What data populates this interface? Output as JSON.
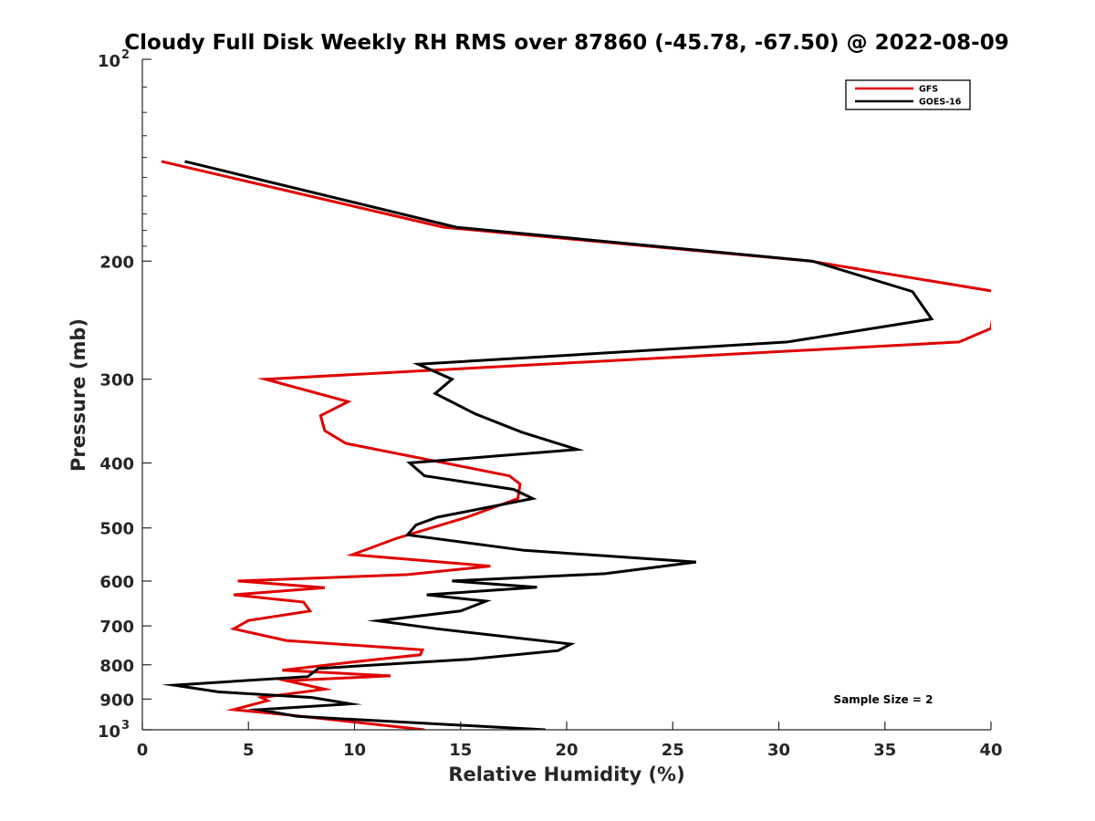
{
  "chart_data": {
    "type": "line",
    "title": "Cloudy Full Disk Weekly RH RMS over 87860 (-45.78, -67.50) @ 2022-08-09",
    "xlabel": "Relative Humidity (%)",
    "ylabel": "Pressure (mb)",
    "xlim": [
      0,
      40
    ],
    "ylim": [
      100,
      1000
    ],
    "y_scale": "log",
    "y_reversed": true,
    "x_ticks": [
      "0",
      "5",
      "10",
      "15",
      "20",
      "25",
      "30",
      "35",
      "40"
    ],
    "y_ticks": [
      {
        "value": 100,
        "base": "10",
        "exp": "2"
      },
      {
        "value": 200,
        "label": "200"
      },
      {
        "value": 300,
        "label": "300"
      },
      {
        "value": 400,
        "label": "400"
      },
      {
        "value": 500,
        "label": "500"
      },
      {
        "value": 600,
        "label": "600"
      },
      {
        "value": 700,
        "label": "700"
      },
      {
        "value": 800,
        "label": "800"
      },
      {
        "value": 900,
        "label": "900"
      },
      {
        "value": 1000,
        "base": "10",
        "exp": "3"
      }
    ],
    "legend_position": "top-right",
    "annotation": "Sample Size = 2",
    "series": [
      {
        "name": "GFS",
        "color": "#e00000",
        "points": [
          [
            0.9,
            142
          ],
          [
            14.2,
            178
          ],
          [
            31.5,
            200
          ],
          [
            40.2,
            222
          ],
          [
            40.2,
            228
          ],
          [
            40.0,
            252
          ],
          [
            38.5,
            264
          ],
          [
            5.8,
            300
          ],
          [
            9.7,
            324
          ],
          [
            8.4,
            340
          ],
          [
            8.6,
            358
          ],
          [
            9.6,
            374
          ],
          [
            17.3,
            418
          ],
          [
            17.8,
            430
          ],
          [
            17.7,
            452
          ],
          [
            15.3,
            482
          ],
          [
            12.0,
            518
          ],
          [
            9.9,
            548
          ],
          [
            16.4,
            570
          ],
          [
            12.5,
            587
          ],
          [
            4.5,
            600
          ],
          [
            8.6,
            614
          ],
          [
            4.3,
            629
          ],
          [
            7.6,
            645
          ],
          [
            7.9,
            665
          ],
          [
            5.0,
            687
          ],
          [
            4.3,
            707
          ],
          [
            6.8,
            736
          ],
          [
            13.2,
            760
          ],
          [
            13.1,
            773
          ],
          [
            9.8,
            793
          ],
          [
            6.6,
            815
          ],
          [
            11.7,
            831
          ],
          [
            6.8,
            845
          ],
          [
            8.6,
            870
          ],
          [
            5.6,
            895
          ],
          [
            5.9,
            905
          ],
          [
            4.3,
            933
          ],
          [
            7.0,
            951
          ],
          [
            13.3,
            1000
          ]
        ]
      },
      {
        "name": "GOES-16",
        "color": "#000000",
        "points": [
          [
            2.0,
            142
          ],
          [
            14.8,
            178
          ],
          [
            31.6,
            200
          ],
          [
            36.3,
            222
          ],
          [
            37.2,
            244
          ],
          [
            30.4,
            264
          ],
          [
            13.0,
            285
          ],
          [
            14.6,
            300
          ],
          [
            13.8,
            315
          ],
          [
            15.7,
            338
          ],
          [
            17.9,
            360
          ],
          [
            20.5,
            382
          ],
          [
            12.6,
            400
          ],
          [
            13.3,
            418
          ],
          [
            17.5,
            438
          ],
          [
            18.4,
            452
          ],
          [
            13.9,
            482
          ],
          [
            12.9,
            495
          ],
          [
            12.5,
            512
          ],
          [
            18.0,
            540
          ],
          [
            26.1,
            562
          ],
          [
            21.8,
            585
          ],
          [
            14.6,
            600
          ],
          [
            18.6,
            613
          ],
          [
            13.4,
            629
          ],
          [
            16.2,
            643
          ],
          [
            15.0,
            665
          ],
          [
            11.1,
            688
          ],
          [
            13.9,
            707
          ],
          [
            20.2,
            745
          ],
          [
            19.6,
            762
          ],
          [
            15.4,
            785
          ],
          [
            8.3,
            810
          ],
          [
            7.8,
            833
          ],
          [
            1.5,
            858
          ],
          [
            3.6,
            878
          ],
          [
            8.0,
            895
          ],
          [
            9.8,
            915
          ],
          [
            5.5,
            933
          ],
          [
            7.3,
            955
          ],
          [
            19.0,
            1000
          ]
        ]
      }
    ]
  }
}
